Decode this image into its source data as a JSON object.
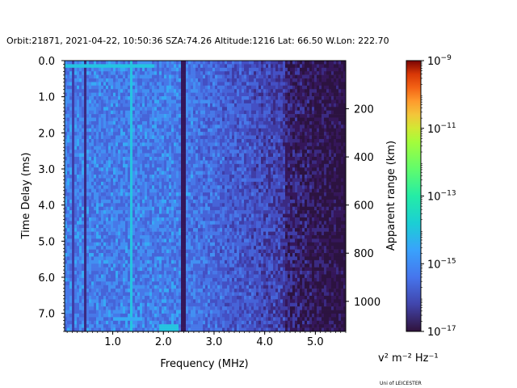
{
  "chart_data": {
    "type": "heatmap",
    "title": "Orbit:21871, 2021-04-22, 10:50:36 SZA:74.26 Altitude:1216 Lat: 66.50 W.Lon: 222.70",
    "xlabel": "Frequency (MHz)",
    "ylabel": "Time Delay (ms)",
    "y2label": "Apparent range (km)",
    "xlim": [
      0.05,
      5.6
    ],
    "ylim": [
      7.5,
      0.0
    ],
    "x_ticks": [
      1.0,
      2.0,
      3.0,
      4.0,
      5.0
    ],
    "x_tick_labels": [
      "1.0",
      "2.0",
      "3.0",
      "4.0",
      "5.0"
    ],
    "y_ticks": [
      0.0,
      1.0,
      2.0,
      3.0,
      4.0,
      5.0,
      6.0,
      7.0
    ],
    "y_tick_labels": [
      "0.0",
      "1.0",
      "2.0",
      "3.0",
      "4.0",
      "5.0",
      "6.0",
      "7.0"
    ],
    "y2_ticks": [
      200,
      400,
      600,
      800,
      1000
    ],
    "y2_tick_labels": [
      "200",
      "400",
      "600",
      "800",
      "1000"
    ],
    "colorbar": {
      "label": "v² m⁻² Hz⁻¹",
      "scale": "log",
      "range": [
        1e-17,
        1e-09
      ],
      "ticks": [
        {
          "mantissa": "10",
          "exp": "−9"
        },
        {
          "mantissa": "10",
          "exp": "−11"
        },
        {
          "mantissa": "10",
          "exp": "−13"
        },
        {
          "mantissa": "10",
          "exp": "−15"
        },
        {
          "mantissa": "10",
          "exp": "−17"
        }
      ],
      "colormap": "turbo"
    },
    "grid": false
  },
  "credit": "Uni of LEICESTER"
}
